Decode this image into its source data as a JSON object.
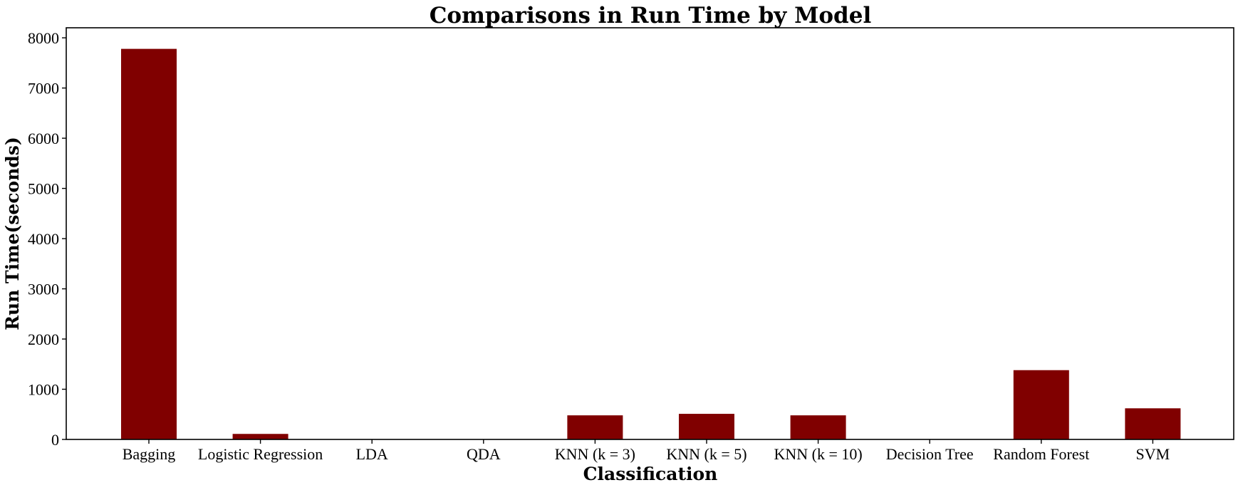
{
  "chart_data": {
    "type": "bar",
    "title": "Comparisons in Run Time by Model",
    "xlabel": "Classification",
    "ylabel": "Run Time(seconds)",
    "categories": [
      "Bagging",
      "Logistic Regression",
      "LDA",
      "QDA",
      "KNN (k = 3)",
      "KNN (k = 5)",
      "KNN (k = 10)",
      "Decision Tree",
      "Random Forest",
      "SVM"
    ],
    "values": [
      7780,
      110,
      5,
      5,
      480,
      510,
      480,
      5,
      1380,
      620
    ],
    "ylim": [
      0,
      8200
    ],
    "yticks": [
      0,
      1000,
      2000,
      3000,
      4000,
      5000,
      6000,
      7000,
      8000
    ],
    "bar_color": "#800000",
    "grid": false
  }
}
